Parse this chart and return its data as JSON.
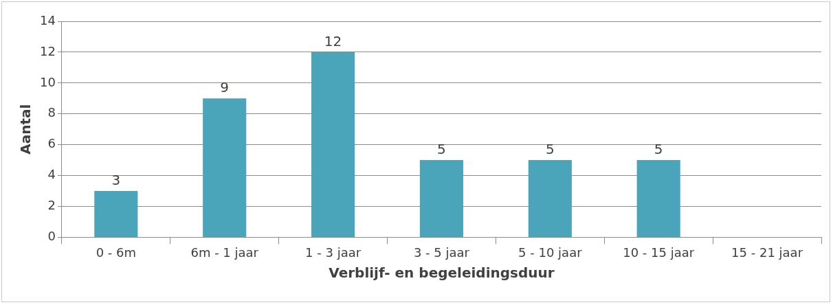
{
  "chart_data": {
    "type": "bar",
    "xlabel": "Verblijf- en begeleidingsduur",
    "ylabel": "Aantal",
    "categories": [
      "0 - 6m",
      "6m - 1 jaar",
      "1 - 3 jaar",
      "3 - 5 jaar",
      "5 - 10 jaar",
      "10 - 15 jaar",
      "15 - 21 jaar"
    ],
    "values": [
      3,
      9,
      12,
      5,
      5,
      5,
      0
    ],
    "value_labels": [
      "3",
      "9",
      "12",
      "5",
      "5",
      "5",
      null
    ],
    "color": "#4aa5bb",
    "ylim": [
      0,
      14
    ],
    "yticks": [
      0,
      2,
      4,
      6,
      8,
      10,
      12,
      14
    ],
    "grid": "y",
    "legend": false
  }
}
